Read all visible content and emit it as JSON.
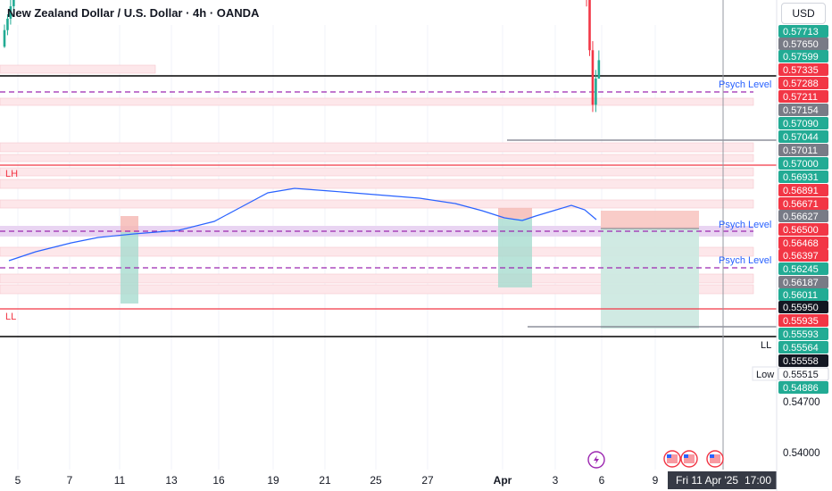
{
  "header": {
    "title": "New Zealand Dollar / U.S. Dollar · 4h · OANDA",
    "currency_button": "USD"
  },
  "chart_data": {
    "type": "candlestick",
    "symbol": "NZDUSD",
    "interval": "4h",
    "ylim": [
      0.5395,
      0.5775
    ],
    "x_ticks": [
      "5",
      "7",
      "11",
      "13",
      "16",
      "19",
      "21",
      "25",
      "27",
      "Apr",
      "3",
      "6",
      "9"
    ],
    "crosshair_time": "Fri 11 Apr '25",
    "crosshair_clock": "17:00",
    "y_axis_ticks": [
      "0.54700",
      "0.54000"
    ],
    "price_tags": [
      {
        "value": "0.57713",
        "color": "#22ab94"
      },
      {
        "value": "0.57650",
        "color": "#787b86"
      },
      {
        "value": "0.57599",
        "color": "#22ab94"
      },
      {
        "value": "0.57335",
        "color": "#f23645"
      },
      {
        "value": "0.57288",
        "color": "#f23645"
      },
      {
        "value": "0.57211",
        "color": "#f23645"
      },
      {
        "value": "0.57154",
        "color": "#787b86"
      },
      {
        "value": "0.57090",
        "color": "#22ab94"
      },
      {
        "value": "0.57044",
        "color": "#22ab94"
      },
      {
        "value": "0.57011",
        "color": "#787b86"
      },
      {
        "value": "0.57000",
        "color": "#22ab94"
      },
      {
        "value": "0.56931",
        "color": "#22ab94"
      },
      {
        "value": "0.56891",
        "color": "#f23645"
      },
      {
        "value": "0.56671",
        "color": "#f23645"
      },
      {
        "value": "0.56627",
        "color": "#787b86"
      },
      {
        "value": "0.56500",
        "color": "#f23645"
      },
      {
        "value": "0.56468",
        "color": "#f23645"
      },
      {
        "value": "0.56397",
        "color": "#f23645"
      },
      {
        "value": "0.56245",
        "color": "#22ab94"
      },
      {
        "value": "0.56187",
        "color": "#787b86"
      },
      {
        "value": "0.56011",
        "color": "#22ab94"
      },
      {
        "value": "0.55950",
        "color": "#131722"
      },
      {
        "value": "0.55935",
        "color": "#f23645"
      },
      {
        "value": "0.55593",
        "color": "#22ab94"
      },
      {
        "value": "0.55564",
        "color": "#22ab94"
      },
      {
        "value": "0.55558",
        "color": "#131722"
      },
      {
        "value": "0.55515",
        "color": "#ffffff"
      },
      {
        "value": "0.54886",
        "color": "#22ab94"
      }
    ],
    "side_labels": {
      "low": "Low",
      "ll_right": "LL"
    },
    "annotations": [
      {
        "text": "LH",
        "color": "#f23645"
      },
      {
        "text": "LL",
        "color": "#f23645"
      },
      {
        "text": "Psych Level",
        "color": "#2962ff"
      },
      {
        "text": "Psych Level",
        "color": "#2962ff"
      },
      {
        "text": "Psych Level",
        "color": "#2962ff"
      }
    ],
    "levels": [
      {
        "name": "swing-high-line",
        "price": 0.5734,
        "color": "#000000"
      },
      {
        "name": "psych-level-0.5725",
        "price": 0.5725,
        "color": "#9c27b0",
        "dashed": true
      },
      {
        "name": "lh-line",
        "price": 0.57,
        "color": "#f23645"
      },
      {
        "name": "psych-level-0.5650",
        "price": 0.565,
        "color": "#9c27b0",
        "dashed": true
      },
      {
        "name": "psych-level-0.5625",
        "price": 0.5625,
        "color": "#9c27b0",
        "dashed": true
      },
      {
        "name": "ll-line",
        "price": 0.5595,
        "color": "#f23645"
      },
      {
        "name": "swing-low-line",
        "price": 0.5565,
        "color": "#000000"
      }
    ],
    "colors": {
      "up": "#22ab94",
      "down": "#f23645",
      "ma": "#2962ff",
      "grid": "#f0f3fa"
    },
    "grid": false
  }
}
